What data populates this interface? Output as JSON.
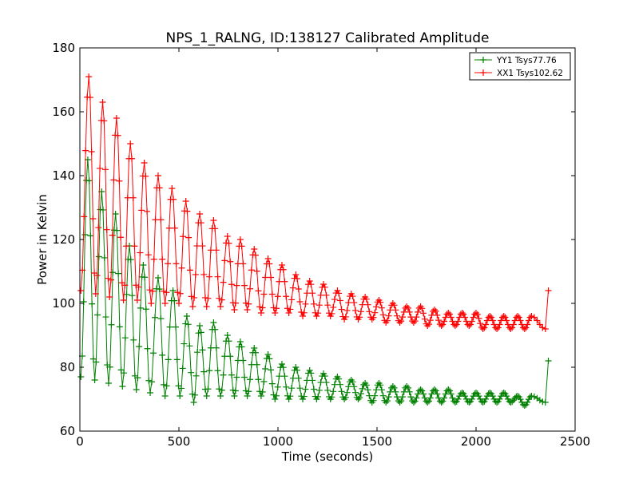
{
  "chart_data": {
    "type": "line",
    "title": "NPS_1_RALNG, ID:138127 Calibrated Amplitude",
    "xlabel": "Time (seconds)",
    "ylabel": "Power in Kelvin",
    "xlim": [
      0,
      2500
    ],
    "ylim": [
      60,
      180
    ],
    "xticks": [
      0,
      500,
      1000,
      1500,
      2000,
      2500
    ],
    "yticks": [
      60,
      80,
      100,
      120,
      140,
      160,
      180
    ],
    "grid": false,
    "legend_position": "top-right",
    "marker": "+",
    "series": [
      {
        "name": "YY1 Tsys77.76",
        "color": "#008000",
        "oscillation_period_s": 70,
        "peaks": [
          [
            40,
            145
          ],
          [
            110,
            135
          ],
          [
            180,
            128
          ],
          [
            250,
            118
          ],
          [
            320,
            112
          ],
          [
            395,
            108
          ],
          [
            470,
            104
          ],
          [
            540,
            96
          ],
          [
            605,
            93
          ],
          [
            675,
            94
          ],
          [
            745,
            90
          ],
          [
            810,
            88
          ],
          [
            880,
            86
          ],
          [
            950,
            84
          ],
          [
            1020,
            81
          ],
          [
            1090,
            80
          ],
          [
            1160,
            79
          ],
          [
            1230,
            78
          ],
          [
            1300,
            77
          ],
          [
            1370,
            76
          ],
          [
            1440,
            75
          ],
          [
            1510,
            75
          ],
          [
            1580,
            74
          ],
          [
            1650,
            74
          ],
          [
            1720,
            73
          ],
          [
            1790,
            73
          ],
          [
            1860,
            73
          ],
          [
            1930,
            72
          ],
          [
            2000,
            72
          ],
          [
            2070,
            72
          ],
          [
            2140,
            72
          ],
          [
            2210,
            71
          ],
          [
            2280,
            71
          ]
        ],
        "troughs": [
          [
            5,
            77
          ],
          [
            75,
            76
          ],
          [
            145,
            75
          ],
          [
            215,
            74
          ],
          [
            285,
            73
          ],
          [
            355,
            72
          ],
          [
            430,
            71
          ],
          [
            505,
            71
          ],
          [
            575,
            69
          ],
          [
            640,
            71
          ],
          [
            710,
            71
          ],
          [
            780,
            71
          ],
          [
            845,
            71
          ],
          [
            915,
            71
          ],
          [
            985,
            70
          ],
          [
            1055,
            70
          ],
          [
            1125,
            70
          ],
          [
            1195,
            70
          ],
          [
            1265,
            70
          ],
          [
            1335,
            70
          ],
          [
            1405,
            70
          ],
          [
            1475,
            69
          ],
          [
            1545,
            69
          ],
          [
            1615,
            69
          ],
          [
            1685,
            69
          ],
          [
            1755,
            69
          ],
          [
            1825,
            69
          ],
          [
            1895,
            69
          ],
          [
            1965,
            69
          ],
          [
            2035,
            69
          ],
          [
            2105,
            69
          ],
          [
            2175,
            69
          ],
          [
            2245,
            68
          ],
          [
            2350,
            69
          ]
        ],
        "last_point": [
          2365,
          82
        ]
      },
      {
        "name": "XX1 Tsys102.62",
        "color": "#ff0000",
        "oscillation_period_s": 70,
        "peaks": [
          [
            45,
            171
          ],
          [
            115,
            163
          ],
          [
            185,
            158
          ],
          [
            255,
            150
          ],
          [
            325,
            144
          ],
          [
            395,
            140
          ],
          [
            465,
            136
          ],
          [
            535,
            132
          ],
          [
            605,
            128
          ],
          [
            675,
            126
          ],
          [
            745,
            121
          ],
          [
            810,
            120
          ],
          [
            880,
            117
          ],
          [
            950,
            114
          ],
          [
            1020,
            112
          ],
          [
            1090,
            109
          ],
          [
            1160,
            107
          ],
          [
            1230,
            106
          ],
          [
            1300,
            104
          ],
          [
            1370,
            103
          ],
          [
            1440,
            102
          ],
          [
            1510,
            101
          ],
          [
            1580,
            100
          ],
          [
            1650,
            99
          ],
          [
            1720,
            99
          ],
          [
            1790,
            98
          ],
          [
            1860,
            97
          ],
          [
            1930,
            97
          ],
          [
            2000,
            97
          ],
          [
            2070,
            96
          ],
          [
            2140,
            96
          ],
          [
            2210,
            96
          ],
          [
            2280,
            96
          ]
        ],
        "troughs": [
          [
            5,
            104
          ],
          [
            80,
            103
          ],
          [
            150,
            102
          ],
          [
            220,
            101
          ],
          [
            290,
            101
          ],
          [
            360,
            100
          ],
          [
            430,
            100
          ],
          [
            500,
            100
          ],
          [
            570,
            99
          ],
          [
            640,
            99
          ],
          [
            710,
            99
          ],
          [
            780,
            98
          ],
          [
            845,
            98
          ],
          [
            915,
            97
          ],
          [
            985,
            97
          ],
          [
            1055,
            97
          ],
          [
            1125,
            96
          ],
          [
            1195,
            96
          ],
          [
            1265,
            96
          ],
          [
            1335,
            95
          ],
          [
            1405,
            95
          ],
          [
            1475,
            95
          ],
          [
            1545,
            94
          ],
          [
            1615,
            94
          ],
          [
            1685,
            94
          ],
          [
            1755,
            93
          ],
          [
            1825,
            93
          ],
          [
            1895,
            93
          ],
          [
            1965,
            93
          ],
          [
            2035,
            92
          ],
          [
            2105,
            92
          ],
          [
            2175,
            92
          ],
          [
            2245,
            92
          ],
          [
            2350,
            92
          ]
        ],
        "last_point": [
          2365,
          104
        ]
      }
    ]
  }
}
